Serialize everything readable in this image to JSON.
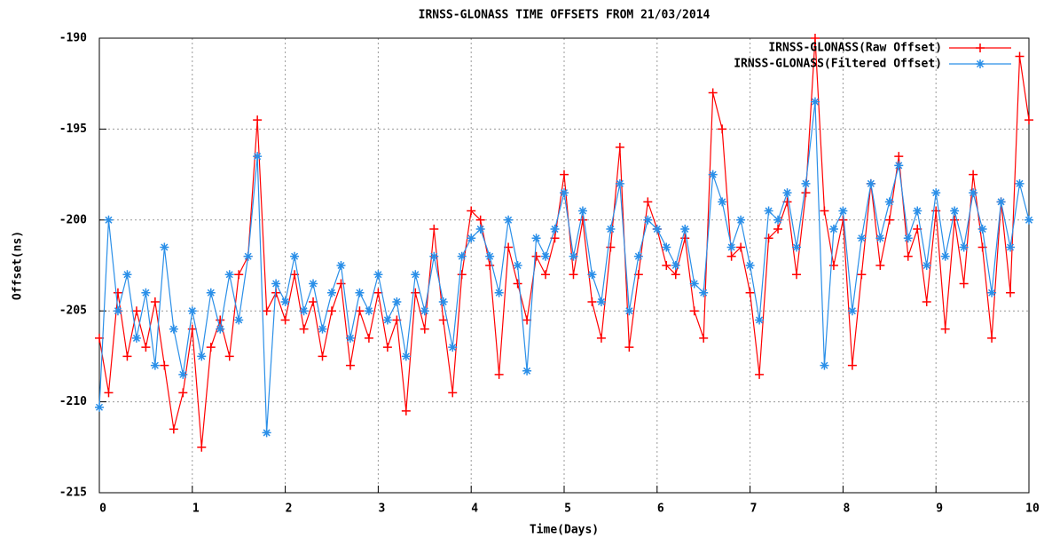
{
  "chart_data": {
    "type": "line",
    "title": "IRNSS-GLONASS TIME OFFSETS FROM 21/03/2014",
    "x_label": "Time(Days)",
    "y_label": "Offset(ns)",
    "xlim": [
      0,
      10
    ],
    "ylim": [
      -215,
      -190
    ],
    "xticks": [
      0,
      1,
      2,
      3,
      4,
      5,
      6,
      7,
      8,
      9,
      10
    ],
    "yticks": [
      -190,
      -195,
      -200,
      -205,
      -210,
      -215
    ],
    "grid": true,
    "legend": "top-right",
    "x": [
      0,
      0.1,
      0.2,
      0.3,
      0.4,
      0.5,
      0.6,
      0.7,
      0.8,
      0.9,
      1,
      1.1,
      1.2,
      1.3,
      1.4,
      1.5,
      1.6,
      1.7,
      1.8,
      1.9,
      2,
      2.1,
      2.2,
      2.3,
      2.4,
      2.5,
      2.6,
      2.7,
      2.8,
      2.9,
      3,
      3.1,
      3.2,
      3.3,
      3.4,
      3.5,
      3.6,
      3.7,
      3.8,
      3.9,
      4,
      4.1,
      4.2,
      4.3,
      4.4,
      4.5,
      4.6,
      4.7,
      4.8,
      4.9,
      5,
      5.1,
      5.2,
      5.3,
      5.4,
      5.5,
      5.6,
      5.7,
      5.8,
      5.9,
      6,
      6.1,
      6.2,
      6.3,
      6.4,
      6.5,
      6.6,
      6.7,
      6.8,
      6.9,
      7,
      7.1,
      7.2,
      7.3,
      7.4,
      7.5,
      7.6,
      7.7,
      7.8,
      7.9,
      8,
      8.1,
      8.2,
      8.3,
      8.4,
      8.5,
      8.6,
      8.7,
      8.8,
      8.9,
      9,
      9.1,
      9.2,
      9.3,
      9.4,
      9.5,
      9.6,
      9.7,
      9.8,
      9.9,
      10
    ],
    "series": [
      {
        "name": "IRNSS-GLONASS(Raw Offset)",
        "color": "#ff0000",
        "marker": "plus",
        "values": [
          -206.5,
          -209.5,
          -204,
          -207.5,
          -205,
          -207,
          -204.5,
          -208,
          -211.5,
          -209.5,
          -206,
          -212.5,
          -207,
          -205.5,
          -207.5,
          -203,
          -202,
          -194.5,
          -205,
          -204,
          -205.5,
          -203,
          -206,
          -204.5,
          -207.5,
          -205,
          -203.5,
          -208,
          -205,
          -206.5,
          -204,
          -207,
          -205.5,
          -210.5,
          -204,
          -206,
          -200.5,
          -205.5,
          -209.5,
          -203,
          -199.5,
          -200,
          -202.5,
          -208.5,
          -201.5,
          -203.5,
          -205.5,
          -202,
          -203,
          -201,
          -197.5,
          -203,
          -200,
          -204.5,
          -206.5,
          -201.5,
          -196,
          -207,
          -203,
          -199,
          -200.5,
          -202.5,
          -203,
          -201,
          -205,
          -206.5,
          -193,
          -195,
          -202,
          -201.5,
          -204,
          -208.5,
          -201,
          -200.5,
          -199,
          -203,
          -198.5,
          -190,
          -199.5,
          -202.5,
          -200,
          -208,
          -203,
          -198,
          -202.5,
          -200,
          -196.5,
          -202,
          -200.5,
          -204.5,
          -199.5,
          -206,
          -200,
          -203.5,
          -197.5,
          -201.5,
          -206.5,
          -199,
          -204,
          -191,
          -194.5
        ]
      },
      {
        "name": "IRNSS-GLONASS(Filtered Offset)",
        "color": "#2a8fe8",
        "marker": "star",
        "values": [
          -210.3,
          -200,
          -205,
          -203,
          -206.5,
          -204,
          -208,
          -201.5,
          -206,
          -208.5,
          -205,
          -207.5,
          -204,
          -206,
          -203,
          -205.5,
          -202,
          -196.5,
          -211.7,
          -203.5,
          -204.5,
          -202,
          -205,
          -203.5,
          -206,
          -204,
          -202.5,
          -206.5,
          -204,
          -205,
          -203,
          -205.5,
          -204.5,
          -207.5,
          -203,
          -205,
          -202,
          -204.5,
          -207,
          -202,
          -201,
          -200.5,
          -202,
          -204,
          -200,
          -202.5,
          -208.3,
          -201,
          -202,
          -200.5,
          -198.5,
          -202,
          -199.5,
          -203,
          -204.5,
          -200.5,
          -198,
          -205,
          -202,
          -200,
          -200.5,
          -201.5,
          -202.5,
          -200.5,
          -203.5,
          -204,
          -197.5,
          -199,
          -201.5,
          -200,
          -202.5,
          -205.5,
          -199.5,
          -200,
          -198.5,
          -201.5,
          -198,
          -193.5,
          -208,
          -200.5,
          -199.5,
          -205,
          -201,
          -198,
          -201,
          -199,
          -197,
          -201,
          -199.5,
          -202.5,
          -198.5,
          -202,
          -199.5,
          -201.5,
          -198.5,
          -200.5,
          -204,
          -199,
          -201.5,
          -198,
          -200
        ]
      }
    ]
  }
}
